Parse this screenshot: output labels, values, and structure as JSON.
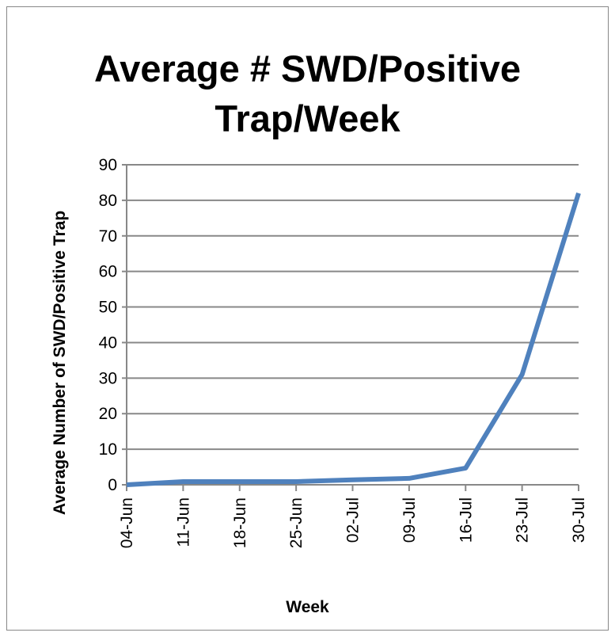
{
  "chart_data": {
    "type": "line",
    "title": "Average # SWD/Positive Trap/Week",
    "title_lines": [
      "Average # SWD/Positive",
      "Trap/Week"
    ],
    "xlabel": "Week",
    "ylabel": "Average Number of SWD/Positive Trap",
    "categories": [
      "04-Jun",
      "11-Jun",
      "18-Jun",
      "25-Jun",
      "02-Jul",
      "09-Jul",
      "16-Jul",
      "23-Jul",
      "30-Jul"
    ],
    "values": [
      0,
      0.9,
      0.9,
      0.9,
      1.4,
      1.8,
      4.7,
      31,
      82
    ],
    "ylim": [
      0,
      90
    ],
    "yticks": [
      0,
      10,
      20,
      30,
      40,
      50,
      60,
      70,
      80,
      90
    ],
    "grid": true,
    "legend": "none",
    "line_color": "#4f81bd"
  }
}
